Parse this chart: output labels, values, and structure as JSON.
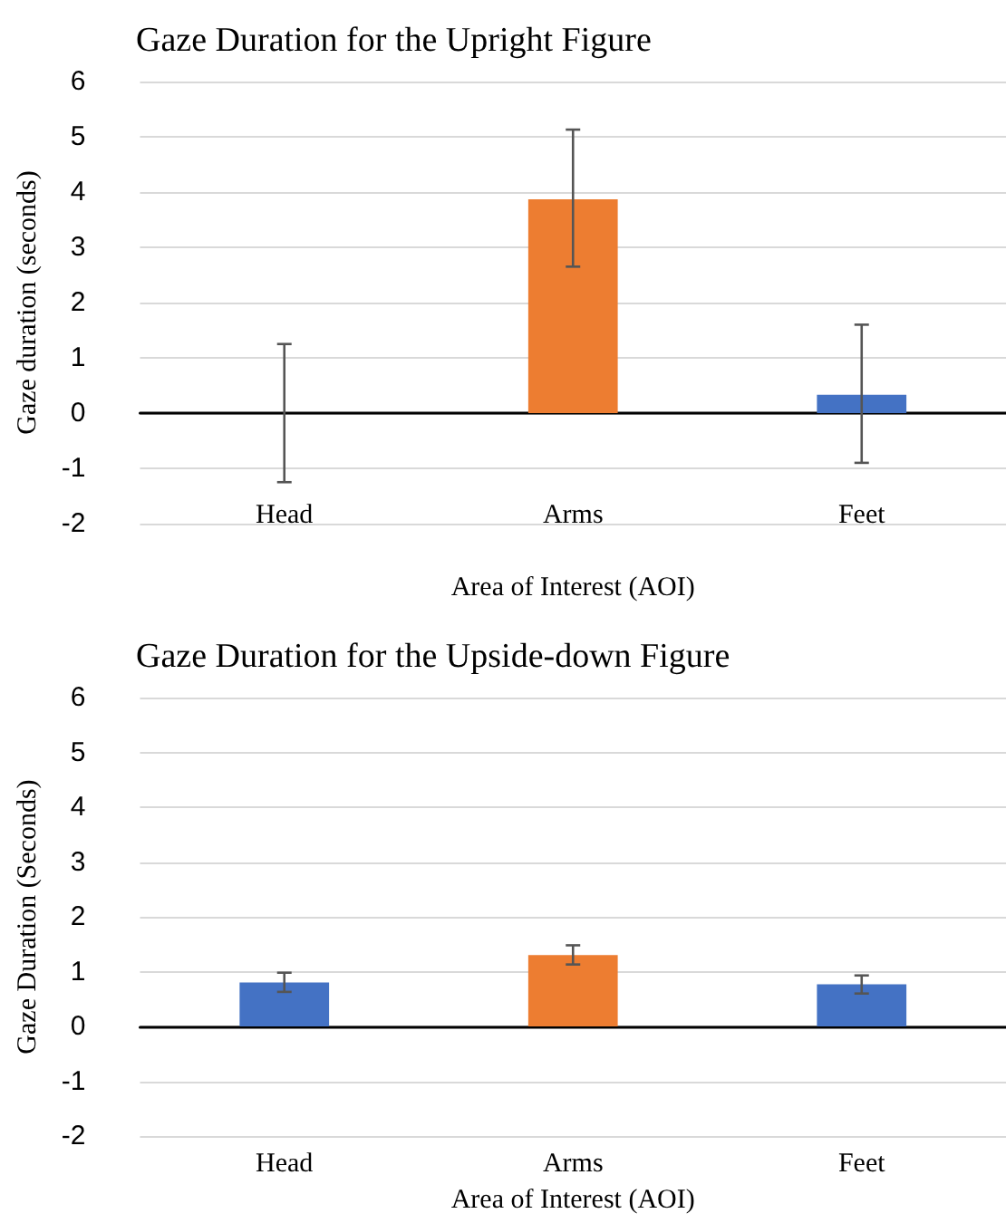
{
  "chart_data": [
    {
      "type": "bar",
      "title": "Gaze Duration for the Upright Figure",
      "xlabel": "Area of Interest (AOI)",
      "ylabel": "Gaze duration (seconds)",
      "categories": [
        "Head",
        "Arms",
        "Feet"
      ],
      "values": [
        0,
        3.87,
        0.33
      ],
      "colors": [
        "#4472c4",
        "#ed7d31",
        "#4472c4"
      ],
      "errors": [
        [
          -1.25,
          1.25
        ],
        [
          2.65,
          5.13
        ],
        [
          -0.9,
          1.6
        ]
      ],
      "ylim": [
        -2,
        6
      ],
      "yticks": [
        -2,
        -1,
        0,
        1,
        2,
        3,
        4,
        5,
        6
      ],
      "grid": "y"
    },
    {
      "type": "bar",
      "title": "Gaze Duration for the Upside-down Figure",
      "xlabel": "Area of Interest (AOI)",
      "ylabel": "Gaze Duration (Seconds)",
      "categories": [
        "Head",
        "Arms",
        "Feet"
      ],
      "values": [
        0.8,
        1.3,
        0.77
      ],
      "colors": [
        "#4472c4",
        "#ed7d31",
        "#4472c4"
      ],
      "errors": [
        [
          0.63,
          0.98
        ],
        [
          1.13,
          1.48
        ],
        [
          0.6,
          0.93
        ]
      ],
      "ylim": [
        -2,
        6
      ],
      "yticks": [
        -2,
        -1,
        0,
        1,
        2,
        3,
        4,
        5,
        6
      ],
      "grid": "y"
    }
  ]
}
